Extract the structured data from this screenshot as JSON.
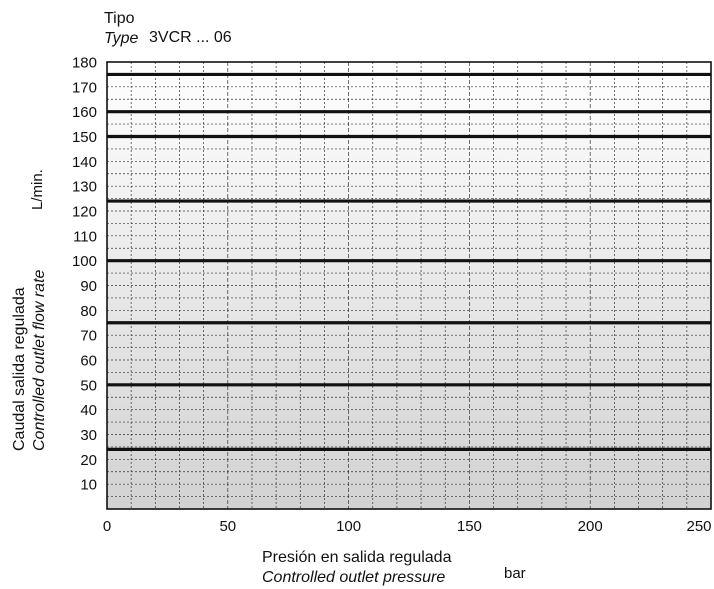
{
  "header": {
    "tipo_label": "Tipo",
    "type_label": "Type",
    "model": "3VCR ... 06"
  },
  "chart_data": {
    "type": "line",
    "xlabel_es": "Presión en salida regulada",
    "xlabel_en": "Controlled outlet pressure",
    "xunit": "bar",
    "ylabel_es": "Caudal salida regulada",
    "ylabel_en": "Controlled outlet flow rate",
    "yunit": "L/min.",
    "xlim": [
      0,
      250
    ],
    "ylim": [
      0,
      180
    ],
    "x_ticks": [
      0,
      50,
      100,
      150,
      200,
      250
    ],
    "y_ticks": [
      10,
      20,
      30,
      40,
      50,
      60,
      70,
      80,
      90,
      100,
      110,
      120,
      130,
      140,
      150,
      160,
      170,
      180
    ],
    "grid": true,
    "series": [
      {
        "x": [
          0,
          250
        ],
        "y": [
          24,
          24
        ]
      },
      {
        "x": [
          0,
          250
        ],
        "y": [
          50,
          50
        ]
      },
      {
        "x": [
          0,
          250
        ],
        "y": [
          75,
          75
        ]
      },
      {
        "x": [
          0,
          250
        ],
        "y": [
          100,
          100
        ]
      },
      {
        "x": [
          0,
          250
        ],
        "y": [
          124,
          124
        ]
      },
      {
        "x": [
          0,
          250
        ],
        "y": [
          150,
          150
        ]
      },
      {
        "x": [
          0,
          250
        ],
        "y": [
          160,
          160
        ]
      },
      {
        "x": [
          0,
          250
        ],
        "y": [
          175,
          175
        ]
      }
    ]
  }
}
